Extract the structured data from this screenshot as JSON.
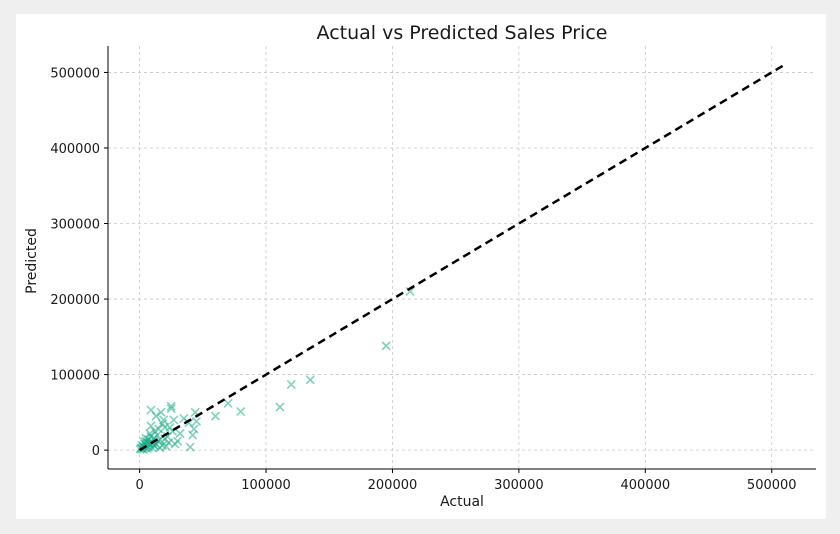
{
  "chart_data": {
    "type": "scatter",
    "title": "Actual vs Predicted Sales Price",
    "xlabel": "Actual",
    "ylabel": "Predicted",
    "xlim": [
      -25000,
      535000
    ],
    "ylim": [
      -25000,
      535000
    ],
    "xticks": [
      0,
      100000,
      200000,
      300000,
      400000,
      500000
    ],
    "yticks": [
      0,
      100000,
      200000,
      300000,
      400000,
      500000
    ],
    "grid": true,
    "marker": "x",
    "marker_color": "#1aab87",
    "line_color": "#000000",
    "reference_line": {
      "style": "dashed",
      "x": [
        0,
        510000
      ],
      "y": [
        0,
        510000
      ]
    },
    "points": {
      "x": [
        214000,
        195000,
        135000,
        120000,
        111000,
        80000,
        70000,
        60000,
        45000,
        44000,
        43000,
        42000,
        40000,
        39000,
        35000,
        32000,
        30000,
        28000,
        26000,
        25000,
        25000,
        24000,
        23000,
        22000,
        21000,
        20000,
        19000,
        18000,
        17000,
        16000,
        15000,
        15000,
        14000,
        13000,
        12000,
        12000,
        11000,
        10000,
        10000,
        9000,
        9000,
        8000,
        8000,
        7000,
        7000,
        6000,
        6000,
        5000,
        5000,
        4000,
        4000,
        3000,
        3000,
        2000,
        2000,
        1000,
        500,
        9000,
        13000,
        18000,
        16000,
        11000,
        20000,
        27000,
        5000,
        7500,
        3500
      ],
      "y": [
        210000,
        138000,
        93000,
        87000,
        57000,
        51000,
        62000,
        45000,
        38000,
        50000,
        28000,
        20000,
        4000,
        36000,
        42000,
        22000,
        12000,
        8000,
        25000,
        58000,
        55000,
        30000,
        10000,
        18000,
        5000,
        15000,
        40000,
        35000,
        50000,
        3000,
        28000,
        12000,
        20000,
        8000,
        25000,
        5000,
        15000,
        10000,
        3000,
        32000,
        18000,
        8000,
        22000,
        14000,
        4000,
        10000,
        2000,
        6000,
        12000,
        3000,
        8000,
        5000,
        1000,
        2000,
        6000,
        3000,
        1000,
        53000,
        45000,
        6000,
        14000,
        7000,
        30000,
        40000,
        16000,
        9000,
        11000
      ]
    }
  }
}
